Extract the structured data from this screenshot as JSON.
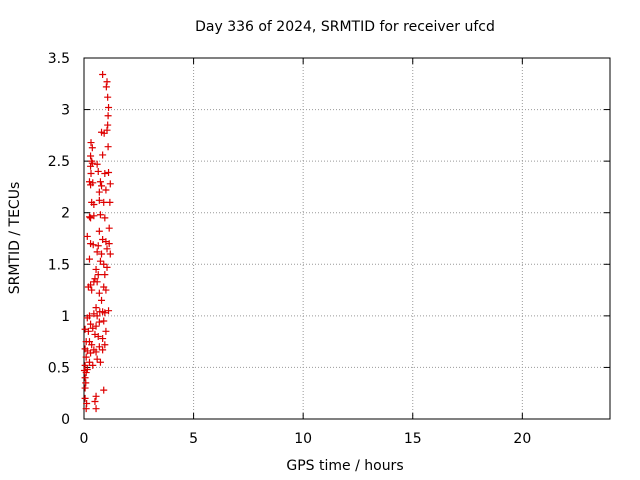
{
  "chart_data": {
    "type": "scatter",
    "title": "Day 336 of 2024, SRMTID for receiver ufcd",
    "xlabel": "GPS time / hours",
    "ylabel": "SRMTID / TECUs",
    "xlim": [
      0,
      24
    ],
    "ylim": [
      0,
      3.5
    ],
    "xticks": [
      0,
      5,
      10,
      15,
      20
    ],
    "yticks": [
      0,
      0.5,
      1,
      1.5,
      2,
      2.5,
      3,
      3.5
    ],
    "xtick_labels": [
      "0",
      "5",
      "10",
      "15",
      "20"
    ],
    "ytick_labels": [
      "0",
      "0.5",
      "1",
      "1.5",
      "2",
      "2.5",
      "3",
      "3.5"
    ],
    "grid": true,
    "marker": "+",
    "series_color": "#dd0000",
    "points": [
      [
        0.85,
        3.34
      ],
      [
        1.05,
        3.27
      ],
      [
        1.02,
        3.22
      ],
      [
        1.08,
        3.12
      ],
      [
        1.12,
        3.02
      ],
      [
        1.1,
        2.94
      ],
      [
        1.08,
        2.85
      ],
      [
        1.05,
        2.8
      ],
      [
        0.8,
        2.78
      ],
      [
        0.92,
        2.77
      ],
      [
        0.32,
        2.68
      ],
      [
        0.38,
        2.63
      ],
      [
        1.1,
        2.64
      ],
      [
        0.3,
        2.55
      ],
      [
        0.85,
        2.56
      ],
      [
        0.35,
        2.5
      ],
      [
        0.3,
        2.45
      ],
      [
        0.38,
        2.48
      ],
      [
        0.6,
        2.47
      ],
      [
        0.32,
        2.38
      ],
      [
        0.65,
        2.4
      ],
      [
        0.95,
        2.38
      ],
      [
        1.12,
        2.39
      ],
      [
        0.25,
        2.3
      ],
      [
        0.3,
        2.27
      ],
      [
        0.4,
        2.29
      ],
      [
        0.75,
        2.3
      ],
      [
        0.8,
        2.26
      ],
      [
        1.2,
        2.28
      ],
      [
        0.7,
        2.2
      ],
      [
        1.0,
        2.22
      ],
      [
        0.35,
        2.1
      ],
      [
        0.45,
        2.08
      ],
      [
        0.7,
        2.12
      ],
      [
        0.9,
        2.1
      ],
      [
        1.18,
        2.1
      ],
      [
        0.25,
        1.96
      ],
      [
        0.3,
        1.95
      ],
      [
        0.45,
        1.97
      ],
      [
        0.75,
        1.98
      ],
      [
        0.95,
        1.95
      ],
      [
        1.15,
        1.85
      ],
      [
        0.7,
        1.82
      ],
      [
        0.15,
        1.77
      ],
      [
        0.3,
        1.7
      ],
      [
        0.42,
        1.69
      ],
      [
        0.65,
        1.68
      ],
      [
        0.85,
        1.74
      ],
      [
        1.0,
        1.72
      ],
      [
        1.15,
        1.7
      ],
      [
        1.05,
        1.65
      ],
      [
        0.6,
        1.62
      ],
      [
        0.8,
        1.6
      ],
      [
        1.2,
        1.6
      ],
      [
        0.25,
        1.55
      ],
      [
        0.75,
        1.53
      ],
      [
        0.9,
        1.5
      ],
      [
        1.05,
        1.47
      ],
      [
        0.55,
        1.45
      ],
      [
        0.65,
        1.4
      ],
      [
        0.95,
        1.4
      ],
      [
        0.5,
        1.36
      ],
      [
        0.45,
        1.33
      ],
      [
        0.6,
        1.33
      ],
      [
        0.3,
        1.3
      ],
      [
        0.2,
        1.28
      ],
      [
        0.35,
        1.25
      ],
      [
        0.9,
        1.28
      ],
      [
        1.0,
        1.25
      ],
      [
        0.7,
        1.22
      ],
      [
        0.8,
        1.15
      ],
      [
        0.55,
        1.08
      ],
      [
        0.72,
        1.04
      ],
      [
        0.85,
        1.04
      ],
      [
        0.95,
        1.03
      ],
      [
        1.12,
        1.05
      ],
      [
        0.45,
        1.02
      ],
      [
        0.25,
        1.0
      ],
      [
        0.6,
        1.0
      ],
      [
        0.15,
        0.98
      ],
      [
        0.3,
        0.92
      ],
      [
        0.7,
        0.94
      ],
      [
        0.9,
        0.95
      ],
      [
        0.4,
        0.88
      ],
      [
        0.55,
        0.9
      ],
      [
        0.05,
        0.87
      ],
      [
        0.2,
        0.85
      ],
      [
        1.0,
        0.85
      ],
      [
        0.5,
        0.82
      ],
      [
        0.65,
        0.8
      ],
      [
        0.85,
        0.78
      ],
      [
        0.25,
        0.75
      ],
      [
        0.1,
        0.75
      ],
      [
        0.35,
        0.72
      ],
      [
        0.95,
        0.72
      ],
      [
        0.05,
        0.68
      ],
      [
        0.45,
        0.67
      ],
      [
        0.7,
        0.7
      ],
      [
        0.15,
        0.66
      ],
      [
        0.3,
        0.64
      ],
      [
        0.55,
        0.65
      ],
      [
        0.85,
        0.67
      ],
      [
        0.1,
        0.6
      ],
      [
        0.25,
        0.55
      ],
      [
        0.6,
        0.58
      ],
      [
        0.75,
        0.55
      ],
      [
        0.05,
        0.52
      ],
      [
        0.4,
        0.52
      ],
      [
        0.15,
        0.48
      ],
      [
        0.02,
        0.47
      ],
      [
        0.1,
        0.45
      ],
      [
        0.05,
        0.4
      ],
      [
        0.08,
        0.35
      ],
      [
        0.05,
        0.3
      ],
      [
        0.9,
        0.28
      ],
      [
        0.55,
        0.22
      ],
      [
        0.5,
        0.17
      ],
      [
        0.05,
        0.2
      ],
      [
        0.12,
        0.15
      ],
      [
        0.55,
        0.1
      ],
      [
        0.1,
        0.1
      ]
    ]
  }
}
